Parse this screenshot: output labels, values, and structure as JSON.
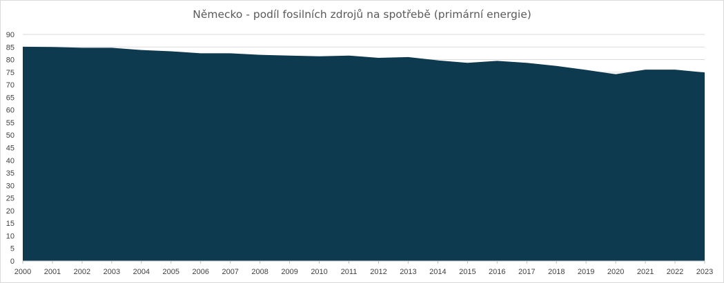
{
  "chart_data": {
    "type": "area",
    "title": "Německo - podíl fosilních zdrojů na spotřebě (primární energie)",
    "xlabel": "",
    "ylabel": "",
    "x": [
      "2000",
      "2001",
      "2002",
      "2003",
      "2004",
      "2005",
      "2006",
      "2007",
      "2008",
      "2009",
      "2010",
      "2011",
      "2012",
      "2013",
      "2014",
      "2015",
      "2016",
      "2017",
      "2018",
      "2019",
      "2020",
      "2021",
      "2022",
      "2023"
    ],
    "series": [
      {
        "values": [
          85.1,
          85.0,
          84.7,
          84.7,
          83.8,
          83.3,
          82.5,
          82.5,
          81.9,
          81.6,
          81.3,
          81.6,
          80.7,
          81.0,
          79.7,
          78.7,
          79.5,
          78.7,
          77.5,
          75.9,
          74.2,
          76.0,
          76.0,
          74.9
        ],
        "color": "#0e3a4f"
      }
    ],
    "ylim": [
      0,
      90
    ],
    "yticks": [
      "0",
      "5",
      "10",
      "15",
      "20",
      "25",
      "30",
      "35",
      "40",
      "45",
      "50",
      "55",
      "60",
      "65",
      "70",
      "75",
      "80",
      "85",
      "90"
    ],
    "grid": true,
    "legend": "none"
  }
}
